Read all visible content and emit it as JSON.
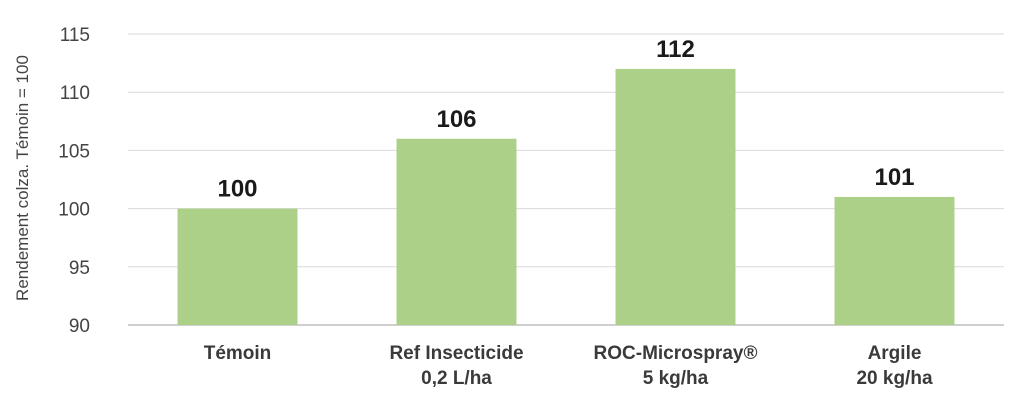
{
  "chart_data": {
    "type": "bar",
    "categories": [
      [
        "Témoin"
      ],
      [
        "Ref Insecticide",
        "0,2 L/ha"
      ],
      [
        "ROC-Microspray®",
        "5 kg/ha"
      ],
      [
        "Argile",
        "20 kg/ha"
      ]
    ],
    "values": [
      100,
      106,
      112,
      101
    ],
    "data_labels": [
      "100",
      "106",
      "112",
      "101"
    ],
    "ylabel": "Rendement colza. Témoin = 100",
    "ylim": [
      90,
      115
    ],
    "yticks": [
      "90",
      "95",
      "100",
      "105",
      "110",
      "115"
    ],
    "grid": true,
    "colors": {
      "bar": "#add089",
      "grid": "#d9d9d9",
      "axis": "#bfbfbf"
    }
  }
}
